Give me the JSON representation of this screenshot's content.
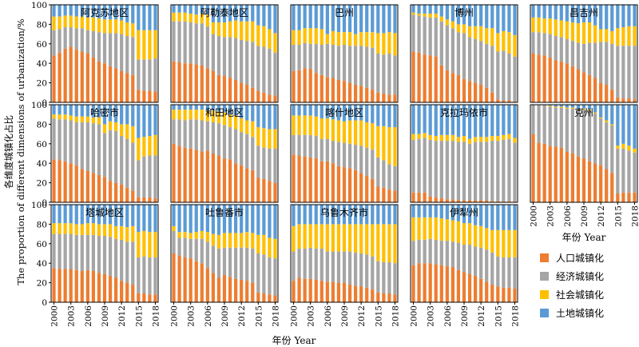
{
  "chart_data": {
    "type": "bar",
    "stacked": true,
    "normalized_percent": true,
    "ylabel": "各维度城镇化占比 The proportion of different dimensions of urbanization/%",
    "xlabel": "年份 Year",
    "ylim": [
      0,
      100
    ],
    "yticks": [
      0,
      20,
      40,
      60,
      80,
      100
    ],
    "xticks": [
      2000,
      2003,
      2006,
      2009,
      2012,
      2015,
      2018
    ],
    "x": [
      2000,
      2001,
      2002,
      2003,
      2004,
      2005,
      2006,
      2007,
      2008,
      2009,
      2010,
      2011,
      2012,
      2013,
      2014,
      2015,
      2016,
      2017,
      2018
    ],
    "series_names": [
      "人口城镇化",
      "经济城镇化",
      "社会城镇化",
      "土地城镇化"
    ],
    "colors": [
      "#ed7d31",
      "#a5a5a5",
      "#ffc000",
      "#5b9bd5"
    ],
    "legend_position": "bottom-right",
    "panels": [
      {
        "title": "阿克苏地区",
        "population": [
          48,
          51,
          55,
          57,
          54,
          52,
          50,
          46,
          42,
          40,
          37,
          35,
          32,
          30,
          28,
          13,
          12,
          12,
          11
        ],
        "economic": [
          26,
          24,
          22,
          20,
          22,
          24,
          24,
          27,
          30,
          31,
          34,
          36,
          38,
          38,
          39,
          31,
          32,
          32,
          34
        ],
        "social": [
          14,
          13,
          12,
          12,
          12,
          12,
          13,
          14,
          14,
          14,
          14,
          14,
          14,
          14,
          14,
          30,
          30,
          30,
          29
        ]
      },
      {
        "title": "阿勒泰地区",
        "population": [
          42,
          41,
          40,
          40,
          39,
          38,
          35,
          32,
          28,
          27,
          25,
          23,
          20,
          18,
          15,
          12,
          10,
          8,
          7
        ],
        "economic": [
          41,
          42,
          43,
          42,
          42,
          43,
          43,
          38,
          40,
          40,
          42,
          43,
          44,
          45,
          47,
          46,
          47,
          47,
          44
        ],
        "social": [
          9,
          9,
          9,
          9,
          9,
          10,
          12,
          12,
          14,
          15,
          16,
          18,
          19,
          20,
          21,
          21,
          21,
          20,
          20
        ]
      },
      {
        "title": "巴州",
        "population": [
          32,
          33,
          35,
          34,
          30,
          28,
          26,
          25,
          23,
          22,
          20,
          18,
          17,
          15,
          13,
          10,
          9,
          8,
          8
        ],
        "economic": [
          27,
          26,
          26,
          26,
          30,
          31,
          34,
          34,
          35,
          37,
          38,
          40,
          41,
          42,
          43,
          40,
          40,
          42,
          40
        ],
        "social": [
          15,
          15,
          15,
          16,
          16,
          16,
          10,
          14,
          14,
          13,
          14,
          12,
          14,
          15,
          16,
          21,
          22,
          22,
          23
        ]
      },
      {
        "title": "博州",
        "population": [
          52,
          51,
          49,
          48,
          47,
          38,
          33,
          30,
          28,
          24,
          22,
          20,
          18,
          15,
          10,
          3,
          2,
          2,
          1
        ],
        "economic": [
          38,
          38,
          39,
          39,
          40,
          45,
          46,
          46,
          44,
          47,
          45,
          45,
          45,
          45,
          48,
          49,
          51,
          48,
          46
        ],
        "social": [
          2,
          2,
          3,
          4,
          4,
          5,
          6,
          7,
          8,
          9,
          11,
          13,
          15,
          16,
          18,
          19,
          20,
          22,
          22
        ]
      },
      {
        "title": "昌吉州",
        "population": [
          50,
          49,
          48,
          46,
          43,
          42,
          40,
          37,
          34,
          31,
          28,
          25,
          20,
          18,
          13,
          5,
          4,
          4,
          3
        ],
        "economic": [
          22,
          23,
          23,
          24,
          25,
          25,
          25,
          26,
          27,
          29,
          33,
          36,
          42,
          44,
          47,
          53,
          54,
          54,
          55
        ],
        "social": [
          15,
          15,
          15,
          16,
          17,
          17,
          18,
          19,
          20,
          22,
          21,
          18,
          13,
          13,
          13,
          18,
          19,
          20,
          20
        ]
      },
      {
        "title": "哈密市",
        "population": [
          44,
          43,
          42,
          40,
          38,
          34,
          32,
          30,
          28,
          26,
          22,
          20,
          18,
          15,
          12,
          5,
          5,
          5,
          4
        ],
        "economic": [
          42,
          42,
          43,
          44,
          44,
          48,
          50,
          51,
          52,
          45,
          52,
          53,
          50,
          50,
          49,
          38,
          42,
          43,
          44
        ],
        "social": [
          4,
          5,
          5,
          5,
          6,
          6,
          6,
          6,
          7,
          9,
          9,
          9,
          12,
          15,
          17,
          23,
          20,
          20,
          21
        ]
      },
      {
        "title": "和田地区",
        "population": [
          60,
          58,
          56,
          55,
          54,
          52,
          53,
          50,
          48,
          45,
          44,
          40,
          38,
          35,
          33,
          25,
          24,
          22,
          20
        ],
        "economic": [
          25,
          27,
          28,
          30,
          31,
          32,
          30,
          32,
          33,
          34,
          33,
          35,
          34,
          35,
          34,
          33,
          32,
          33,
          35
        ],
        "social": [
          10,
          10,
          11,
          10,
          10,
          11,
          11,
          12,
          12,
          13,
          13,
          14,
          14,
          14,
          16,
          19,
          20,
          20,
          20
        ]
      },
      {
        "title": "喀什地区",
        "population": [
          49,
          48,
          47,
          46,
          45,
          42,
          42,
          40,
          37,
          36,
          35,
          33,
          30,
          27,
          24,
          16,
          15,
          13,
          12
        ],
        "economic": [
          20,
          21,
          22,
          23,
          23,
          23,
          23,
          23,
          25,
          25,
          25,
          26,
          28,
          29,
          30,
          30,
          28,
          26,
          25
        ],
        "social": [
          20,
          20,
          20,
          20,
          20,
          21,
          21,
          22,
          22,
          22,
          24,
          25,
          26,
          26,
          27,
          32,
          35,
          38,
          40
        ]
      },
      {
        "title": "克拉玛依市",
        "population": [
          10,
          10,
          10,
          6,
          5,
          4,
          3,
          3,
          2,
          2,
          2,
          2,
          2,
          2,
          1,
          1,
          1,
          1,
          1
        ],
        "economic": [
          54,
          55,
          56,
          58,
          58,
          59,
          60,
          60,
          60,
          60,
          58,
          60,
          60,
          60,
          62,
          62,
          63,
          64,
          60
        ],
        "social": [
          6,
          5,
          5,
          5,
          5,
          6,
          6,
          6,
          5,
          6,
          5,
          5,
          5,
          5,
          5,
          5,
          5,
          5,
          5
        ]
      },
      {
        "title": "克州",
        "population": [
          70,
          61,
          60,
          58,
          57,
          56,
          52,
          50,
          47,
          45,
          42,
          40,
          38,
          34,
          30,
          9,
          10,
          10,
          10
        ],
        "economic": [
          30,
          39,
          40,
          40,
          40,
          41,
          44,
          46,
          48,
          50,
          52,
          51,
          48,
          48,
          49,
          46,
          45,
          43,
          41
        ],
        "social": [
          0,
          0,
          0,
          1,
          1,
          1,
          1,
          1,
          1,
          1,
          1,
          1,
          1,
          2,
          1,
          3,
          5,
          5,
          4
        ]
      },
      {
        "title": "塔城地区",
        "population": [
          35,
          34,
          34,
          34,
          33,
          32,
          33,
          32,
          30,
          29,
          27,
          25,
          22,
          20,
          18,
          9,
          9,
          8,
          8
        ],
        "economic": [
          35,
          36,
          36,
          36,
          36,
          37,
          36,
          37,
          38,
          39,
          40,
          40,
          42,
          42,
          44,
          37,
          38,
          38,
          38
        ],
        "social": [
          11,
          11,
          11,
          11,
          11,
          11,
          12,
          12,
          12,
          12,
          13,
          13,
          14,
          15,
          16,
          26,
          26,
          26,
          26
        ]
      },
      {
        "title": "吐鲁番市",
        "population": [
          50,
          48,
          46,
          45,
          42,
          40,
          35,
          30,
          25,
          28,
          26,
          24,
          23,
          22,
          20,
          10,
          9,
          8,
          7
        ],
        "economic": [
          23,
          18,
          20,
          20,
          23,
          25,
          27,
          28,
          30,
          28,
          30,
          32,
          33,
          34,
          35,
          40,
          40,
          38,
          38
        ],
        "social": [
          5,
          6,
          6,
          6,
          7,
          8,
          10,
          12,
          14,
          15,
          15,
          15,
          15,
          16,
          16,
          19,
          20,
          20,
          20
        ]
      },
      {
        "title": "乌鲁木齐市",
        "population": [
          22,
          25,
          24,
          24,
          23,
          22,
          21,
          21,
          20,
          20,
          18,
          17,
          16,
          15,
          13,
          10,
          9,
          9,
          8
        ],
        "economic": [
          30,
          30,
          31,
          32,
          32,
          33,
          31,
          31,
          32,
          32,
          34,
          34,
          34,
          34,
          34,
          32,
          32,
          32,
          32
        ],
        "social": [
          26,
          25,
          25,
          24,
          25,
          25,
          28,
          28,
          28,
          28,
          28,
          29,
          30,
          31,
          33,
          38,
          39,
          39,
          40
        ]
      },
      {
        "title": "伊犁州",
        "population": [
          38,
          40,
          40,
          40,
          39,
          38,
          37,
          36,
          33,
          31,
          29,
          27,
          24,
          21,
          18,
          16,
          15,
          15,
          14
        ],
        "economic": [
          25,
          24,
          24,
          25,
          25,
          25,
          26,
          26,
          28,
          28,
          30,
          30,
          32,
          33,
          33,
          31,
          31,
          31,
          32
        ],
        "social": [
          24,
          23,
          23,
          22,
          23,
          23,
          22,
          22,
          22,
          22,
          22,
          22,
          22,
          22,
          23,
          27,
          28,
          28,
          28
        ]
      }
    ]
  }
}
